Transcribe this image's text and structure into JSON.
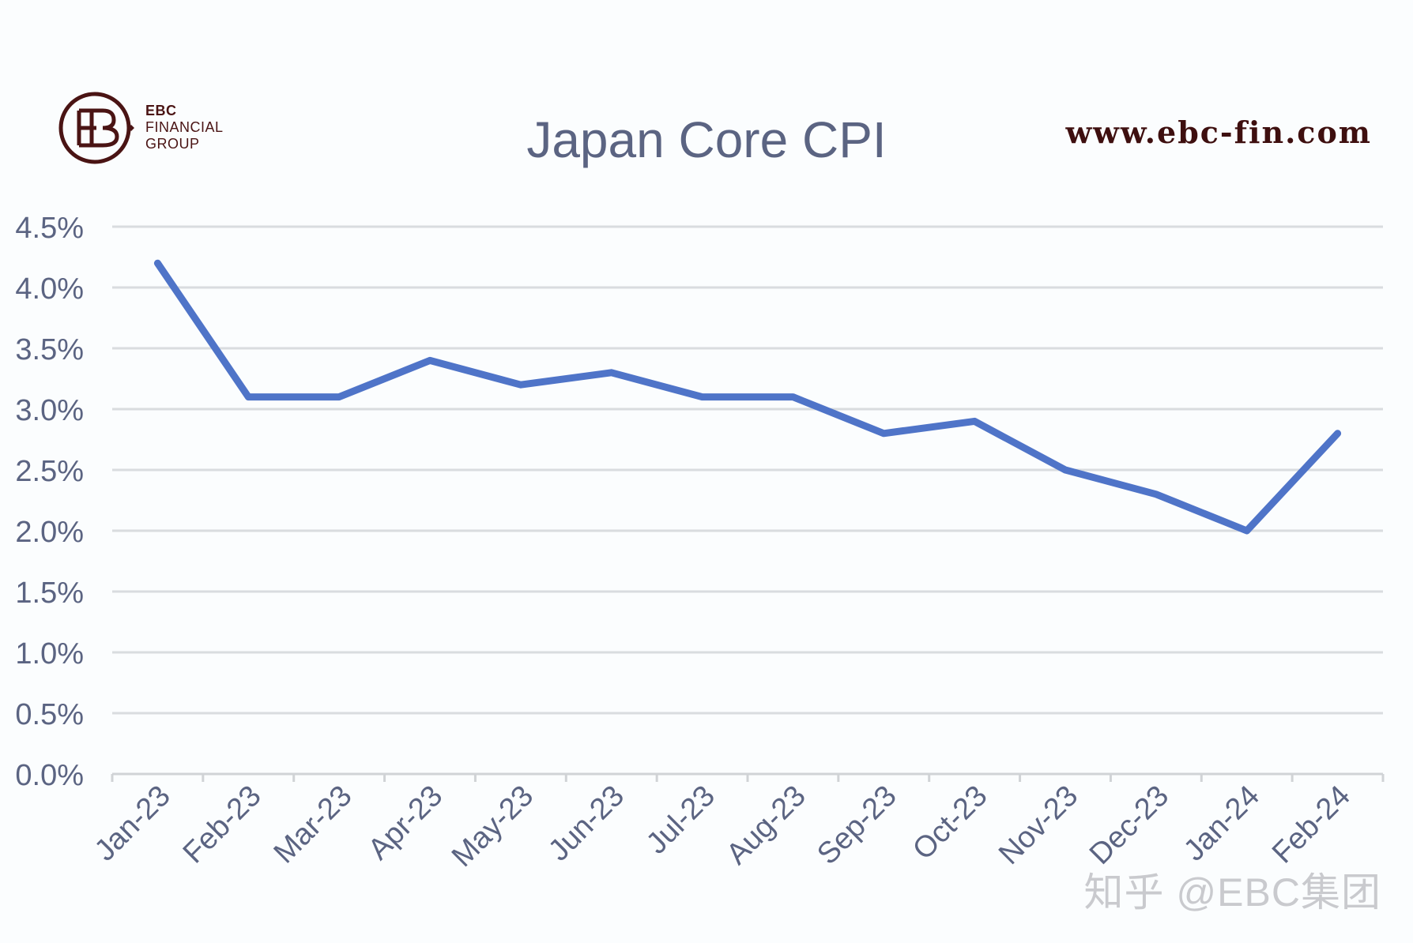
{
  "brand": {
    "line1": "EBC",
    "line2": "FINANCIAL",
    "line3": "GROUP",
    "website": "www.ebc-fin.com",
    "color": "#4a1414"
  },
  "watermark": "知乎 @EBC集团",
  "chart_data": {
    "type": "line",
    "title": "Japan Core CPI",
    "xlabel": "",
    "ylabel": "",
    "categories": [
      "Jan-23",
      "Feb-23",
      "Mar-23",
      "Apr-23",
      "May-23",
      "Jun-23",
      "Jul-23",
      "Aug-23",
      "Sep-23",
      "Oct-23",
      "Nov-23",
      "Dec-23",
      "Jan-24",
      "Feb-24"
    ],
    "series": [
      {
        "name": "Japan Core CPI",
        "values": [
          4.2,
          3.1,
          3.1,
          3.4,
          3.2,
          3.3,
          3.1,
          3.1,
          2.8,
          2.9,
          2.5,
          2.3,
          2.0,
          2.8
        ],
        "color": "#4f74c8"
      }
    ],
    "ylim": [
      0,
      4.5
    ],
    "yticks": [
      "0.0%",
      "0.5%",
      "1.0%",
      "1.5%",
      "2.0%",
      "2.5%",
      "3.0%",
      "3.5%",
      "4.0%",
      "4.5%"
    ],
    "ytick_values": [
      0,
      0.5,
      1.0,
      1.5,
      2.0,
      2.5,
      3.0,
      3.5,
      4.0,
      4.5
    ],
    "grid": true,
    "legend": "none"
  }
}
